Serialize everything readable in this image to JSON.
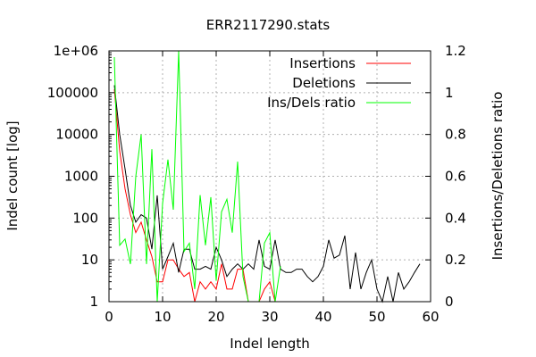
{
  "chart_data": {
    "type": "line",
    "title": "ERR2117290.stats",
    "xlabel": "Indel length",
    "ylabel": "Indel count [log]",
    "y2label": "Insertions/Deletions ratio",
    "xlim": [
      0,
      60
    ],
    "ylim": [
      1,
      1000000
    ],
    "yscale": "log",
    "y2lim": [
      0,
      1.2
    ],
    "grid": true,
    "legend_position": "top-right",
    "x_ticks": [
      0,
      10,
      20,
      30,
      40,
      50,
      60
    ],
    "x_tick_labels": [
      "0",
      "10",
      "20",
      "30",
      "40",
      "50",
      "60"
    ],
    "y_ticks": [
      1,
      10,
      100,
      1000,
      10000,
      100000,
      1000000
    ],
    "y_tick_labels": [
      "1",
      "10",
      "100",
      "1000",
      "10000",
      "100000",
      "1e+06"
    ],
    "y2_ticks": [
      0,
      0.2,
      0.4,
      0.6,
      0.8,
      1.0,
      1.2
    ],
    "y2_tick_labels": [
      "0",
      "0.2",
      "0.4",
      "0.6",
      "0.8",
      "1",
      "1.2"
    ],
    "series": [
      {
        "name": "Insertions",
        "color": "#ff0000",
        "axis": "left",
        "x": [
          1,
          2,
          3,
          4,
          5,
          6,
          7,
          8,
          9,
          10,
          11,
          12,
          13,
          14,
          15,
          16,
          17,
          18,
          19,
          20,
          21,
          22,
          23,
          24,
          25,
          26,
          27,
          28,
          29,
          30,
          31,
          32
        ],
        "y": [
          120000,
          4000,
          500,
          120,
          45,
          80,
          30,
          12,
          3,
          3,
          10,
          10,
          6,
          4,
          5,
          1,
          3,
          2,
          3,
          2,
          8,
          2,
          2,
          6,
          6,
          1,
          1,
          1,
          2,
          3,
          1,
          1
        ]
      },
      {
        "name": "Deletions",
        "color": "#000000",
        "axis": "left",
        "x": [
          1,
          2,
          3,
          4,
          5,
          6,
          7,
          8,
          9,
          10,
          11,
          12,
          13,
          14,
          15,
          16,
          17,
          18,
          19,
          20,
          21,
          22,
          23,
          24,
          25,
          26,
          27,
          28,
          29,
          30,
          31,
          32,
          33,
          34,
          35,
          36,
          37,
          38,
          39,
          40,
          41,
          42,
          43,
          44,
          45,
          46,
          47,
          48,
          49,
          50,
          51,
          52,
          53,
          54,
          55,
          56,
          57,
          58
        ],
        "y": [
          150000,
          10000,
          1500,
          200,
          80,
          120,
          100,
          18,
          350,
          6,
          12,
          25,
          5,
          18,
          18,
          6,
          6,
          7,
          6,
          20,
          10,
          4,
          6,
          8,
          6,
          8,
          6,
          30,
          7,
          6,
          30,
          6,
          5,
          5,
          6,
          6,
          4,
          3,
          4,
          7,
          30,
          11,
          13,
          38,
          2,
          15,
          2,
          5,
          10,
          2,
          1,
          4,
          1,
          5,
          2,
          3,
          5,
          8
        ]
      },
      {
        "name": "Ins/Dels ratio",
        "color": "#00ff00",
        "axis": "right",
        "x": [
          1,
          2,
          3,
          4,
          5,
          6,
          7,
          8,
          9,
          10,
          11,
          12,
          13,
          14,
          15,
          16,
          17,
          18,
          19,
          20,
          21,
          22,
          23,
          24,
          25,
          26,
          27,
          28,
          29,
          30,
          31,
          32
        ],
        "y": [
          1.17,
          0.27,
          0.3,
          0.18,
          0.6,
          0.8,
          0.18,
          0.73,
          0.0,
          0.47,
          0.68,
          0.44,
          1.2,
          0.24,
          0.28,
          0.06,
          0.51,
          0.27,
          0.5,
          0.1,
          0.43,
          0.49,
          0.33,
          0.67,
          0.12,
          0.0,
          0.0,
          0.0,
          0.28,
          0.33,
          0.0,
          0.17
        ]
      }
    ]
  }
}
